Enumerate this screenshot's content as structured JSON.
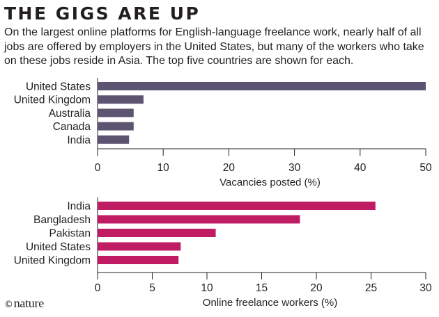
{
  "header": {
    "title": "THE GIGS ARE UP",
    "subtitle": "On the largest online platforms for English-language freelance work, nearly half of all jobs are offered by employers in the United States, but many of the workers who take on these jobs reside in Asia. The top five countries are shown for each."
  },
  "credit": {
    "symbol": "©",
    "brand": "nature"
  },
  "chart_data": [
    {
      "type": "bar",
      "orientation": "horizontal",
      "categories": [
        "United States",
        "United Kingdom",
        "Australia",
        "Canada",
        "India"
      ],
      "values": [
        50,
        7,
        5.5,
        5.5,
        4.8
      ],
      "xlabel": "Vacancies posted (%)",
      "xlim": [
        0,
        50
      ],
      "xticks": [
        0,
        10,
        20,
        30,
        40,
        50
      ],
      "color": "#5c5470",
      "grid": false
    },
    {
      "type": "bar",
      "orientation": "horizontal",
      "categories": [
        "India",
        "Bangladesh",
        "Pakistan",
        "United States",
        "United Kingdom"
      ],
      "values": [
        25.4,
        18.5,
        10.8,
        7.6,
        7.4
      ],
      "xlabel": "Online freelance workers (%)",
      "xlim": [
        0,
        30
      ],
      "xticks": [
        0,
        5,
        10,
        15,
        20,
        25,
        30
      ],
      "color": "#c01c64",
      "grid": false
    }
  ]
}
